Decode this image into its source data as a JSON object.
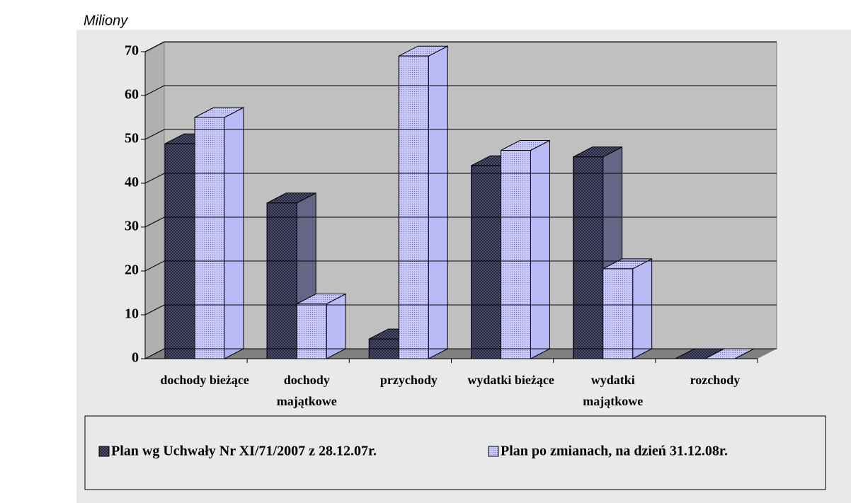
{
  "chart_data": {
    "type": "bar3d",
    "y_axis_label": "Miliony",
    "categories": [
      "dochody bieżące",
      "dochody majątkowe",
      "przychody",
      "wydatki bieżące",
      "wydatki majątkowe",
      "rozchody"
    ],
    "series": [
      {
        "name": "Plan wg Uchwały Nr XI/71/2007 z 28.12.07r.",
        "color": "#55557a",
        "values": [
          49,
          35.5,
          4.5,
          44,
          46,
          0
        ]
      },
      {
        "name": "Plan po zmianach, na dzień 31.12.08r.",
        "color": "#b8b8ff",
        "values": [
          55,
          12.5,
          69,
          47.5,
          20.5,
          0
        ]
      }
    ],
    "ylim": [
      0,
      70
    ],
    "yticks": [
      0,
      10,
      20,
      30,
      40,
      50,
      60,
      70
    ],
    "grid": true,
    "legend": "bottom"
  }
}
